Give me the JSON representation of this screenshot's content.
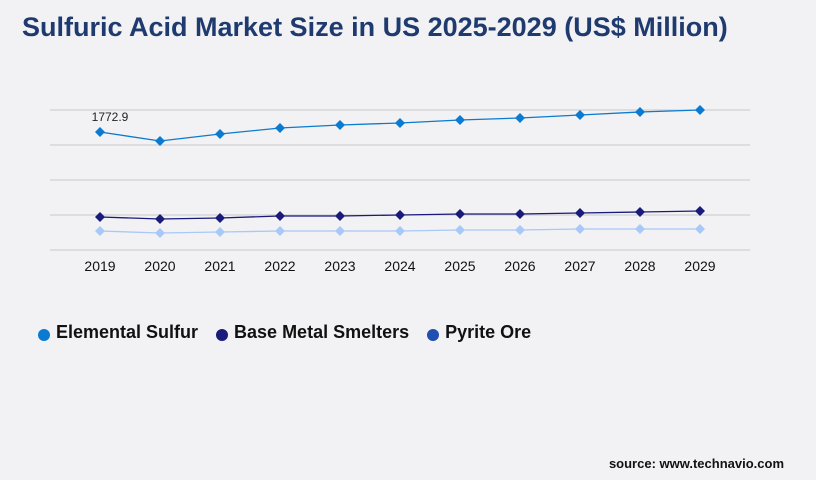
{
  "chart_data": {
    "type": "line",
    "title": "Sulfuric Acid Market Size in US 2025-2029 (US$ Million)",
    "categories": [
      "2019",
      "2020",
      "2021",
      "2022",
      "2023",
      "2024",
      "2025",
      "2026",
      "2027",
      "2028",
      "2029"
    ],
    "series": [
      {
        "name": "Elemental Sulfur",
        "color": "#0a7bd0",
        "line_color": "#0a7bd0",
        "values": [
          1772.9,
          1637,
          1742,
          1833,
          1878,
          1908,
          1953,
          1983,
          2028,
          2073,
          2103
        ]
      },
      {
        "name": "Base Metal Smelters",
        "color": "#1a1a7a",
        "line_color": "#1a1a7a",
        "values": [
          496,
          466,
          481,
          511,
          511,
          526,
          541,
          541,
          556,
          571,
          586
        ]
      },
      {
        "name": "Pyrite Ore",
        "color": "#1f4fb0",
        "line_color": "#a8c8f8",
        "values": [
          285,
          255,
          270,
          285,
          285,
          285,
          300,
          300,
          315,
          315,
          315
        ]
      }
    ],
    "data_labels": [
      {
        "series": "Elemental Sulfur",
        "category": "2019",
        "text": "1772.9"
      }
    ],
    "ylim": [
      0,
      2103
    ],
    "grid": true,
    "legend_position": "bottom-left",
    "xlabel": "",
    "ylabel": ""
  },
  "source": "source: www.technavio.com"
}
